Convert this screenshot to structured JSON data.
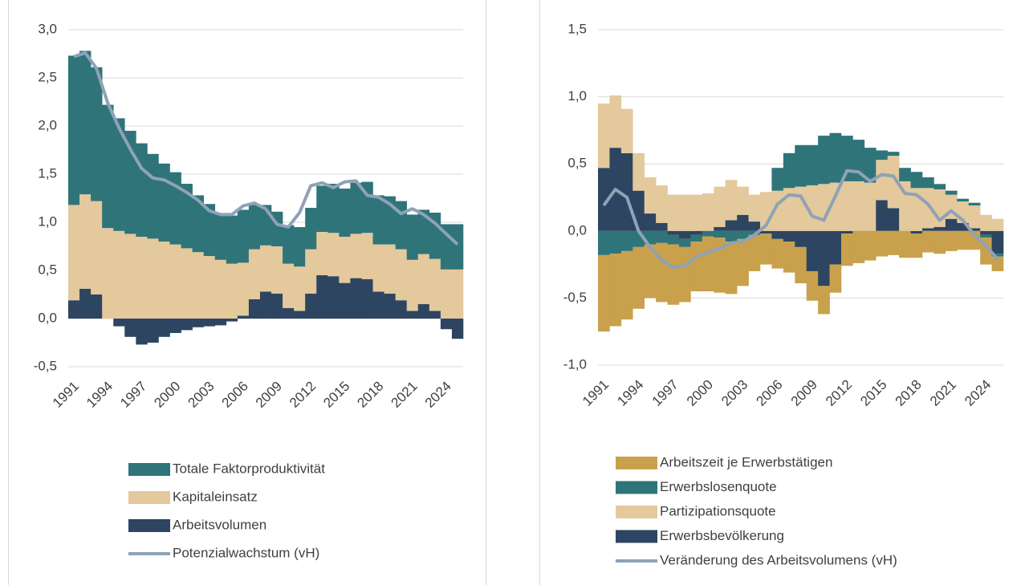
{
  "chart_data": [
    {
      "type": "bar",
      "stacked": true,
      "grid": true,
      "categories": [
        "1991",
        null,
        null,
        "1994",
        null,
        null,
        "1997",
        null,
        null,
        "2000",
        null,
        null,
        "2003",
        null,
        null,
        "2006",
        null,
        null,
        "2009",
        null,
        null,
        "2012",
        null,
        null,
        "2015",
        null,
        null,
        "2018",
        null,
        null,
        "2021",
        null,
        null,
        "2024",
        null
      ],
      "ylim": [
        -0.5,
        3.0
      ],
      "yticks": [
        {
          "value": -0.5,
          "label": "-0,5"
        },
        {
          "value": 0,
          "label": "0,0"
        },
        {
          "value": 0.5,
          "label": "0,5"
        },
        {
          "value": 1,
          "label": "1,0"
        },
        {
          "value": 1.5,
          "label": "1,5"
        },
        {
          "value": 2,
          "label": "2,0"
        },
        {
          "value": 2.5,
          "label": "2,5"
        },
        {
          "value": 3,
          "label": "3,0"
        }
      ],
      "series": [
        {
          "name": "Arbeitsvolumen",
          "color": "#2d4561",
          "values": [
            0.19,
            0.31,
            0.25,
            0.0,
            -0.08,
            -0.19,
            -0.27,
            -0.25,
            -0.19,
            -0.15,
            -0.12,
            -0.09,
            -0.08,
            -0.07,
            -0.03,
            0.03,
            0.2,
            0.28,
            0.26,
            0.11,
            0.08,
            0.26,
            0.45,
            0.44,
            0.37,
            0.42,
            0.41,
            0.28,
            0.26,
            0.19,
            0.08,
            0.15,
            0.08,
            -0.11,
            -0.21
          ]
        },
        {
          "name": "Kapitaleinsatz",
          "color": "#e3c99c",
          "values": [
            0.99,
            0.98,
            0.97,
            0.94,
            0.91,
            0.88,
            0.85,
            0.83,
            0.8,
            0.77,
            0.73,
            0.69,
            0.65,
            0.61,
            0.57,
            0.55,
            0.52,
            0.48,
            0.49,
            0.46,
            0.46,
            0.46,
            0.45,
            0.45,
            0.48,
            0.46,
            0.48,
            0.49,
            0.51,
            0.53,
            0.53,
            0.52,
            0.54,
            0.51,
            0.51
          ]
        },
        {
          "name": "Totale Faktorproduktivität",
          "color": "#2f7479",
          "values": [
            1.55,
            1.49,
            1.39,
            1.28,
            1.17,
            1.07,
            0.97,
            0.88,
            0.81,
            0.75,
            0.67,
            0.59,
            0.54,
            0.47,
            0.5,
            0.55,
            0.46,
            0.42,
            0.36,
            0.4,
            0.41,
            0.43,
            0.48,
            0.51,
            0.5,
            0.53,
            0.53,
            0.51,
            0.5,
            0.5,
            0.47,
            0.46,
            0.48,
            0.47,
            0.47
          ]
        },
        {
          "name": "Potenzialwachstum (vH)",
          "color": "#8fa2b6",
          "type": "line",
          "values": [
            2.72,
            2.76,
            2.6,
            2.24,
            1.98,
            1.76,
            1.56,
            1.46,
            1.44,
            1.38,
            1.31,
            1.23,
            1.12,
            1.08,
            1.08,
            1.17,
            1.2,
            1.14,
            0.98,
            0.95,
            1.1,
            1.38,
            1.41,
            1.36,
            1.42,
            1.43,
            1.28,
            1.26,
            1.19,
            1.09,
            1.14,
            1.08,
            0.99,
            0.88,
            0.77
          ]
        }
      ]
    },
    {
      "type": "bar",
      "stacked": true,
      "grid": true,
      "categories": [
        "1991",
        null,
        null,
        "1994",
        null,
        null,
        "1997",
        null,
        null,
        "2000",
        null,
        null,
        "2003",
        null,
        null,
        "2006",
        null,
        null,
        "2009",
        null,
        null,
        "2012",
        null,
        null,
        "2015",
        null,
        null,
        "2018",
        null,
        null,
        "2021",
        null,
        null,
        "2024",
        null
      ],
      "ylim": [
        -1.0,
        1.5
      ],
      "yticks": [
        {
          "value": -1,
          "label": "-1,0"
        },
        {
          "value": -0.5,
          "label": "-0,5"
        },
        {
          "value": 0,
          "label": "0,0"
        },
        {
          "value": 0.5,
          "label": "0,5"
        },
        {
          "value": 1,
          "label": "1,0"
        },
        {
          "value": 1.5,
          "label": "1,5"
        }
      ],
      "series": [
        {
          "name": "Erwerbsbevölkerung",
          "color": "#2d4561",
          "values": [
            0.47,
            0.62,
            0.58,
            0.3,
            0.13,
            0.06,
            -0.03,
            -0.06,
            -0.03,
            0.0,
            0.03,
            0.08,
            0.12,
            0.07,
            -0.02,
            -0.06,
            -0.08,
            -0.12,
            -0.3,
            -0.41,
            -0.25,
            -0.02,
            0.0,
            0.0,
            0.23,
            0.17,
            0.0,
            -0.02,
            0.02,
            0.03,
            0.09,
            0.06,
            0.02,
            -0.03,
            -0.17
          ]
        },
        {
          "name": "Partizipationsquote",
          "color": "#e3c99c",
          "values": [
            0.48,
            0.39,
            0.33,
            0.28,
            0.27,
            0.28,
            0.27,
            0.27,
            0.27,
            0.28,
            0.3,
            0.3,
            0.21,
            0.2,
            0.29,
            0.3,
            0.32,
            0.33,
            0.34,
            0.35,
            0.36,
            0.37,
            0.37,
            0.36,
            0.3,
            0.39,
            0.37,
            0.32,
            0.3,
            0.28,
            0.18,
            0.16,
            0.17,
            0.12,
            0.09
          ]
        },
        {
          "name": "Erwerbslosenquote",
          "color": "#2f7479",
          "values": [
            -0.18,
            -0.17,
            -0.15,
            -0.12,
            -0.1,
            -0.09,
            -0.07,
            -0.06,
            -0.05,
            -0.04,
            -0.05,
            -0.08,
            -0.06,
            -0.03,
            0.0,
            0.17,
            0.26,
            0.31,
            0.3,
            0.36,
            0.37,
            0.34,
            0.31,
            0.26,
            0.07,
            0.03,
            0.1,
            0.12,
            0.08,
            0.04,
            0.03,
            0.02,
            0.02,
            -0.02,
            -0.02
          ]
        },
        {
          "name": "Arbeitszeit je Erwerbstätigen",
          "color": "#c9a14c",
          "values": [
            -0.57,
            -0.54,
            -0.51,
            -0.46,
            -0.4,
            -0.44,
            -0.45,
            -0.41,
            -0.37,
            -0.41,
            -0.41,
            -0.39,
            -0.35,
            -0.27,
            -0.23,
            -0.22,
            -0.23,
            -0.27,
            -0.22,
            -0.21,
            -0.21,
            -0.24,
            -0.24,
            -0.22,
            -0.19,
            -0.18,
            -0.2,
            -0.18,
            -0.16,
            -0.17,
            -0.15,
            -0.14,
            -0.14,
            -0.2,
            -0.11
          ]
        },
        {
          "name": "Veränderung des Arbeitsvolumens (vH)",
          "color": "#8fa2b6",
          "type": "line",
          "values": [
            0.19,
            0.31,
            0.25,
            0.0,
            -0.12,
            -0.22,
            -0.27,
            -0.26,
            -0.19,
            -0.16,
            -0.13,
            -0.09,
            -0.08,
            -0.03,
            0.04,
            0.2,
            0.27,
            0.26,
            0.11,
            0.08,
            0.26,
            0.45,
            0.44,
            0.37,
            0.42,
            0.41,
            0.28,
            0.27,
            0.2,
            0.08,
            0.15,
            0.08,
            -0.03,
            -0.11,
            -0.21
          ]
        }
      ]
    }
  ]
}
